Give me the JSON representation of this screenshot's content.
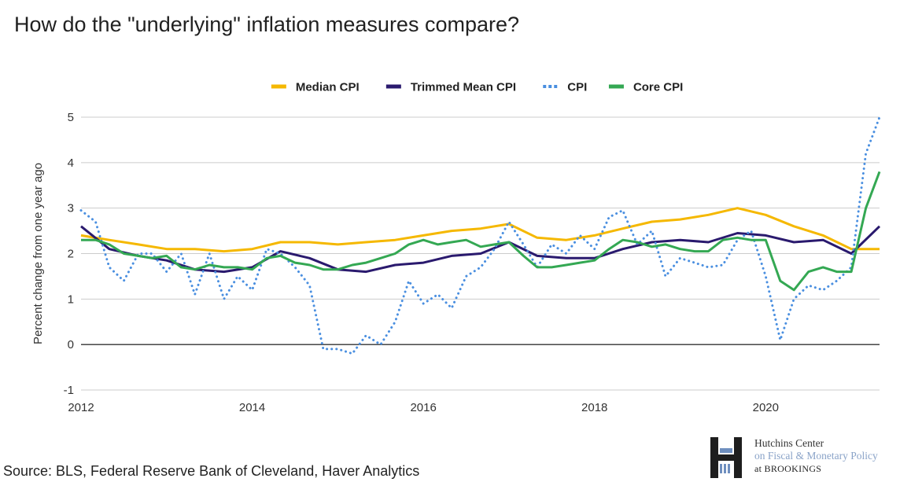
{
  "title": "How do the \"underlying\" inflation measures compare?",
  "source": "Source: BLS, Federal Reserve Bank of Cleveland, Haver Analytics",
  "logo": {
    "line1": "Hutchins Center",
    "line2": "on Fiscal & Monetary Policy",
    "line3": "at BROOKINGS"
  },
  "chart_data": {
    "type": "line",
    "ylabel": "Percent change from one year ago",
    "xlabel": "",
    "xlim": [
      2012,
      2021.33
    ],
    "ylim": [
      -1,
      5
    ],
    "yticks": [
      -1,
      0,
      1,
      2,
      3,
      4,
      5
    ],
    "xticks": [
      2012,
      2014,
      2016,
      2018,
      2020
    ],
    "grid": true,
    "legend_position": "top-center",
    "series": [
      {
        "name": "Median CPI",
        "color": "#F5B800",
        "style": "solid",
        "x": [
          2012,
          2012.33,
          2012.67,
          2013,
          2013.33,
          2013.67,
          2014,
          2014.33,
          2014.67,
          2015,
          2015.33,
          2015.67,
          2016,
          2016.33,
          2016.67,
          2017,
          2017.33,
          2017.67,
          2018,
          2018.33,
          2018.67,
          2019,
          2019.33,
          2019.67,
          2020,
          2020.33,
          2020.67,
          2021,
          2021.33
        ],
        "y": [
          2.4,
          2.3,
          2.2,
          2.1,
          2.1,
          2.05,
          2.1,
          2.25,
          2.25,
          2.2,
          2.25,
          2.3,
          2.4,
          2.5,
          2.55,
          2.65,
          2.35,
          2.3,
          2.4,
          2.55,
          2.7,
          2.75,
          2.85,
          3.0,
          2.85,
          2.6,
          2.4,
          2.1,
          2.1
        ]
      },
      {
        "name": "Trimmed Mean CPI",
        "color": "#2A1A6E",
        "style": "solid",
        "x": [
          2012,
          2012.33,
          2012.67,
          2013,
          2013.33,
          2013.67,
          2014,
          2014.33,
          2014.67,
          2015,
          2015.33,
          2015.67,
          2016,
          2016.33,
          2016.67,
          2017,
          2017.33,
          2017.67,
          2018,
          2018.33,
          2018.67,
          2019,
          2019.33,
          2019.67,
          2020,
          2020.33,
          2020.67,
          2021,
          2021.33
        ],
        "y": [
          2.6,
          2.1,
          1.95,
          1.85,
          1.65,
          1.6,
          1.7,
          2.05,
          1.9,
          1.65,
          1.6,
          1.75,
          1.8,
          1.95,
          2.0,
          2.25,
          1.95,
          1.9,
          1.9,
          2.1,
          2.25,
          2.3,
          2.25,
          2.45,
          2.4,
          2.25,
          2.3,
          2.0,
          2.6
        ]
      },
      {
        "name": "CPI",
        "color": "#4A8FE0",
        "style": "dotted",
        "x": [
          2012,
          2012.17,
          2012.33,
          2012.5,
          2012.67,
          2012.83,
          2013,
          2013.17,
          2013.33,
          2013.5,
          2013.67,
          2013.83,
          2014,
          2014.17,
          2014.33,
          2014.5,
          2014.67,
          2014.83,
          2015,
          2015.17,
          2015.33,
          2015.5,
          2015.67,
          2015.83,
          2016,
          2016.17,
          2016.33,
          2016.5,
          2016.67,
          2016.83,
          2017,
          2017.17,
          2017.33,
          2017.5,
          2017.67,
          2017.83,
          2018,
          2018.17,
          2018.33,
          2018.5,
          2018.67,
          2018.83,
          2019,
          2019.17,
          2019.33,
          2019.5,
          2019.67,
          2019.83,
          2020,
          2020.17,
          2020.33,
          2020.5,
          2020.67,
          2020.83,
          2021,
          2021.17,
          2021.33
        ],
        "y": [
          2.95,
          2.7,
          1.7,
          1.4,
          2.0,
          2.0,
          1.6,
          2.0,
          1.1,
          2.0,
          1.0,
          1.5,
          1.2,
          2.1,
          2.0,
          1.7,
          1.3,
          -0.1,
          -0.1,
          -0.2,
          0.2,
          0.0,
          0.5,
          1.4,
          0.9,
          1.1,
          0.8,
          1.5,
          1.7,
          2.1,
          2.7,
          2.2,
          1.7,
          2.2,
          2.0,
          2.4,
          2.1,
          2.8,
          2.95,
          2.2,
          2.5,
          1.5,
          1.9,
          1.8,
          1.7,
          1.75,
          2.3,
          2.5,
          1.5,
          0.1,
          1.0,
          1.3,
          1.2,
          1.4,
          1.7,
          4.2,
          5.0
        ]
      },
      {
        "name": "Core CPI",
        "color": "#34A853",
        "style": "solid",
        "x": [
          2012,
          2012.17,
          2012.33,
          2012.5,
          2012.67,
          2012.83,
          2013,
          2013.17,
          2013.33,
          2013.5,
          2013.67,
          2013.83,
          2014,
          2014.17,
          2014.33,
          2014.5,
          2014.67,
          2014.83,
          2015,
          2015.17,
          2015.33,
          2015.5,
          2015.67,
          2015.83,
          2016,
          2016.17,
          2016.33,
          2016.5,
          2016.67,
          2016.83,
          2017,
          2017.17,
          2017.33,
          2017.5,
          2017.67,
          2017.83,
          2018,
          2018.17,
          2018.33,
          2018.5,
          2018.67,
          2018.83,
          2019,
          2019.17,
          2019.33,
          2019.5,
          2019.67,
          2019.83,
          2020,
          2020.17,
          2020.33,
          2020.5,
          2020.67,
          2020.83,
          2021,
          2021.17,
          2021.33
        ],
        "y": [
          2.3,
          2.3,
          2.2,
          2.0,
          1.95,
          1.9,
          1.95,
          1.7,
          1.65,
          1.75,
          1.7,
          1.7,
          1.65,
          1.9,
          1.95,
          1.8,
          1.75,
          1.65,
          1.65,
          1.75,
          1.8,
          1.9,
          2.0,
          2.2,
          2.3,
          2.2,
          2.25,
          2.3,
          2.15,
          2.2,
          2.25,
          1.95,
          1.7,
          1.7,
          1.75,
          1.8,
          1.85,
          2.1,
          2.3,
          2.25,
          2.15,
          2.2,
          2.1,
          2.05,
          2.05,
          2.3,
          2.35,
          2.3,
          2.3,
          1.4,
          1.2,
          1.6,
          1.7,
          1.6,
          1.6,
          3.0,
          3.8
        ]
      }
    ]
  }
}
